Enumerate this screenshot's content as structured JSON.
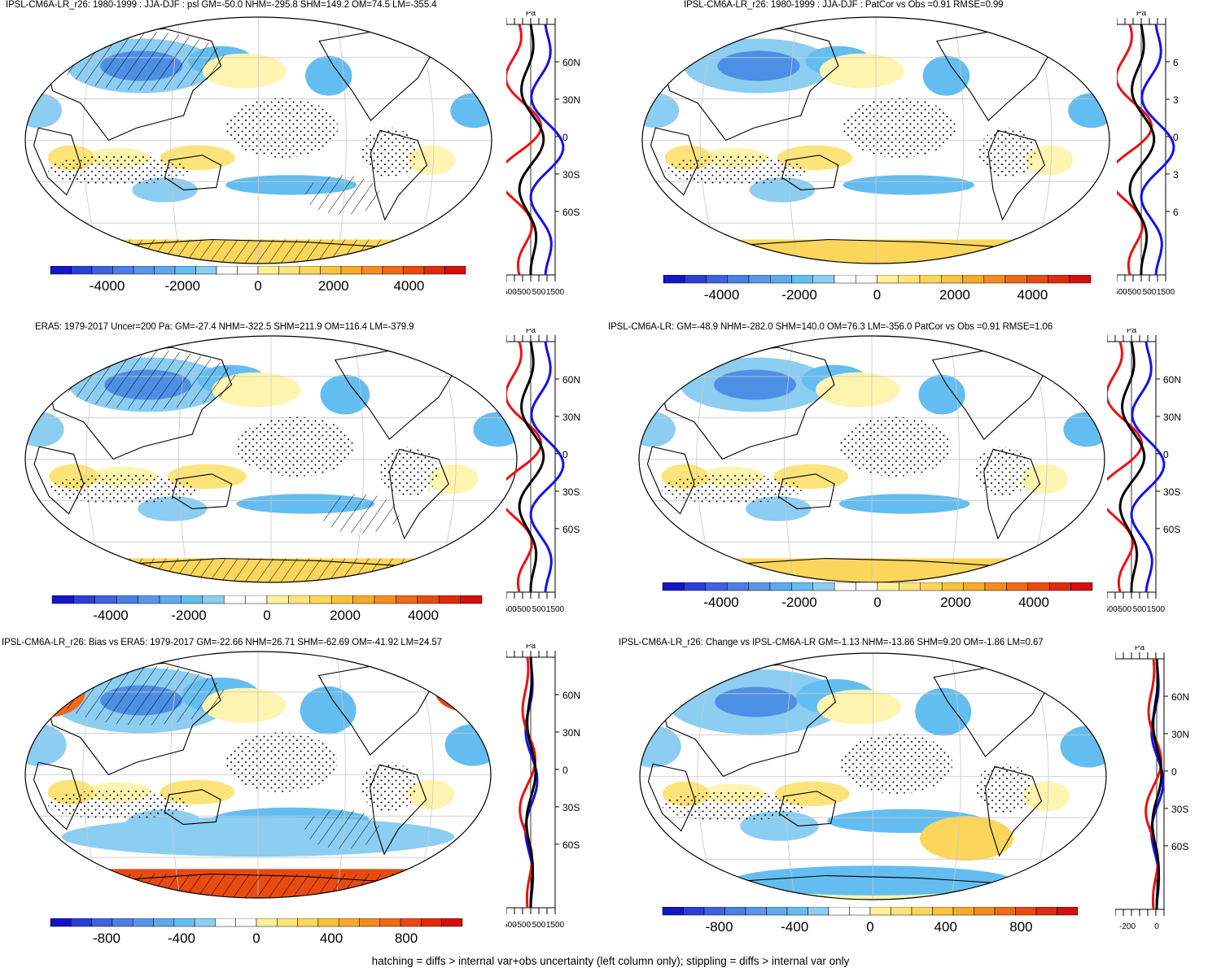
{
  "panels": [
    {
      "id": "p1",
      "title": "IPSL-CM6A-LR_r26: 1980-1999 : JJA-DJF : psl GM=-50.0 NHM=-295.8 SHM=149.2 OM=74.5 LM=-355.4",
      "colorbar_ticks": [
        "-4000",
        "-2000",
        "0",
        "2000",
        "4000"
      ],
      "colorbar_range": [
        -5500,
        5500
      ],
      "zonal_unit": "Pa",
      "zonal_xticks": [
        "-1500",
        "-500",
        "500",
        "1500"
      ],
      "zonal_lat_labels": [
        "60N",
        "30N",
        "0",
        "30S",
        "60S"
      ],
      "hatching": true,
      "stippling": true
    },
    {
      "id": "p2",
      "title": "IPSL-CM6A-LR_r26: 1980-1999 : JJA-DJF : PatCor vs Obs =0.91 RMSE=0.99",
      "colorbar_ticks": [
        "-4000",
        "-2000",
        "0",
        "2000",
        "4000"
      ],
      "colorbar_range": [
        -5500,
        5500
      ],
      "zonal_unit": "Pa",
      "zonal_xticks": [
        "-1500",
        "-500",
        "500",
        "1500"
      ],
      "zonal_lat_labels": [
        "6",
        "3",
        "0",
        "3",
        "6"
      ],
      "hatching": false,
      "stippling": true
    },
    {
      "id": "p3",
      "title": "ERA5: 1979-2017 Uncer=200 Pa: GM=-27.4 NHM=-322.5 SHM=211.9 OM=116.4 LM=-379.9",
      "colorbar_ticks": [
        "-4000",
        "-2000",
        "0",
        "2000",
        "4000"
      ],
      "colorbar_range": [
        -5500,
        5500
      ],
      "zonal_unit": "Pa",
      "zonal_xticks": [
        "-1500",
        "-500",
        "500",
        "1500"
      ],
      "zonal_lat_labels": [
        "60N",
        "30N",
        "0",
        "30S",
        "60S"
      ],
      "hatching": true,
      "stippling": true
    },
    {
      "id": "p4",
      "title": "IPSL-CM6A-LR: GM=-48.9 NHM=-282.0 SHM=140.0 OM=76.3 LM=-356.0 PatCor vs Obs =0.91 RMSE=1.06",
      "colorbar_ticks": [
        "-4000",
        "-2000",
        "0",
        "2000",
        "4000"
      ],
      "colorbar_range": [
        -5500,
        5500
      ],
      "zonal_unit": "Pa",
      "zonal_xticks": [
        "-1500",
        "-500",
        "500",
        "1500"
      ],
      "zonal_lat_labels": [
        "60N",
        "30N",
        "0",
        "30S",
        "60S"
      ],
      "hatching": false,
      "stippling": true
    },
    {
      "id": "p5",
      "title": "IPSL-CM6A-LR_r26: Bias vs ERA5: 1979-2017 GM=-22.66 NHM=26.71 SHM=-62.69 OM=-41.92 LM=24.57",
      "colorbar_ticks": [
        "-800",
        "-400",
        "0",
        "400",
        "800"
      ],
      "colorbar_range": [
        -1100,
        1100
      ],
      "zonal_unit": "Pa",
      "zonal_xticks": [
        "-1500",
        "-500",
        "500",
        "1500"
      ],
      "zonal_lat_labels": [
        "60N",
        "30N",
        "0",
        "30S",
        "60S"
      ],
      "hatching": true,
      "stippling": true
    },
    {
      "id": "p6",
      "title": "IPSL-CM6A-LR_r26: Change vs IPSL-CM6A-LR GM=-1.13 NHM=-13.86 SHM=9.20 OM=-1.86 LM=0.67",
      "colorbar_ticks": [
        "-800",
        "-400",
        "0",
        "400",
        "800"
      ],
      "colorbar_range": [
        -1100,
        1100
      ],
      "zonal_unit": "Pa",
      "zonal_xticks": [
        "-200",
        "0"
      ],
      "zonal_lat_labels": [
        "60N",
        "30N",
        "0",
        "30S",
        "60S"
      ],
      "hatching": false,
      "stippling": true
    }
  ],
  "colors": {
    "scale": [
      "#1414c8",
      "#2a3ed9",
      "#3e62e0",
      "#4d7ee4",
      "#5a96e8",
      "#5fa9ec",
      "#64bdf0",
      "#8ccdf2",
      "#ffffff",
      "#ffffff",
      "#fff09a",
      "#fde47a",
      "#fbd65a",
      "#f9c23c",
      "#f6aa2a",
      "#f28c1e",
      "#ee6a16",
      "#e84a12",
      "#e02a0e",
      "#d50e0e"
    ],
    "coast": "#000000",
    "zonal_model": "#000000",
    "zonal_obs": "#ee1111",
    "zonal_other": "#1111ee"
  },
  "caption": "hatching = diffs > internal var+obs uncertainty (left column only); stippling = diffs > internal var only"
}
